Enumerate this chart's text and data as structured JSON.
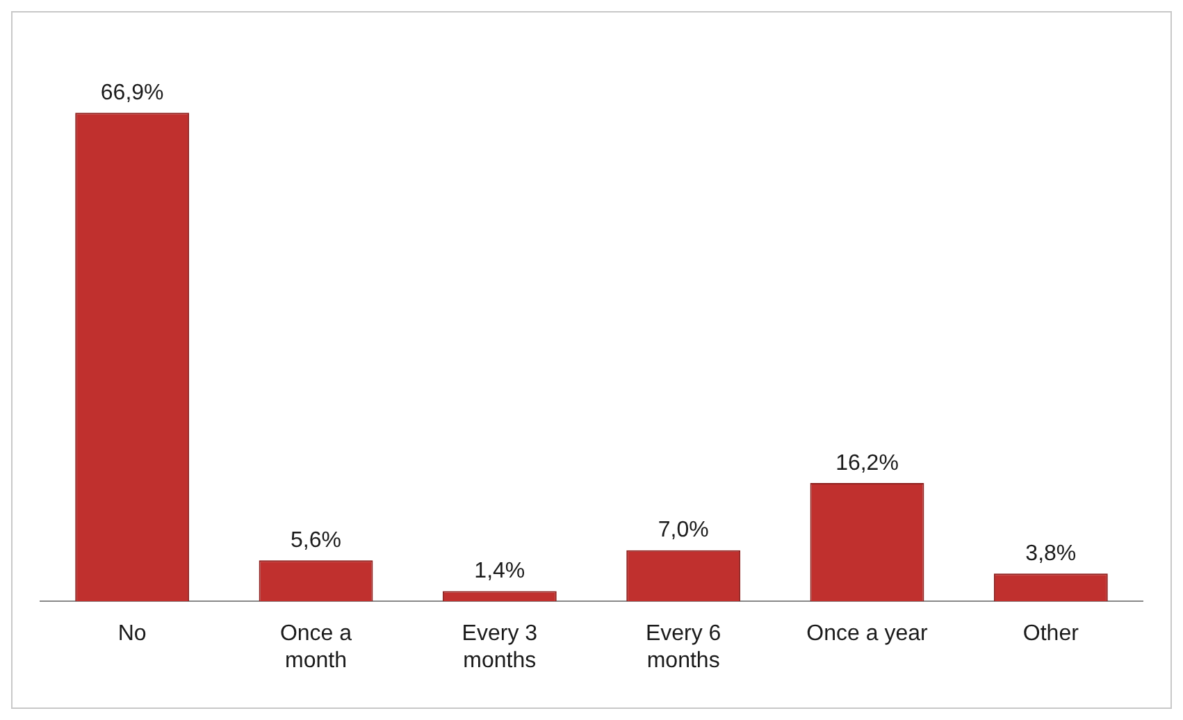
{
  "chart_data": {
    "type": "bar",
    "categories": [
      "No",
      "Once a month",
      "Every 3 months",
      "Every 6 months",
      "Once a year",
      "Other"
    ],
    "values": [
      66.9,
      5.6,
      1.4,
      7.0,
      16.2,
      3.8
    ],
    "value_labels": [
      "66,9%",
      "5,6%",
      "1,4%",
      "7,0%",
      "16,2%",
      "3,8%"
    ],
    "color": "#c0302e",
    "grid": false,
    "legend": false,
    "tick_labels": "x"
  }
}
